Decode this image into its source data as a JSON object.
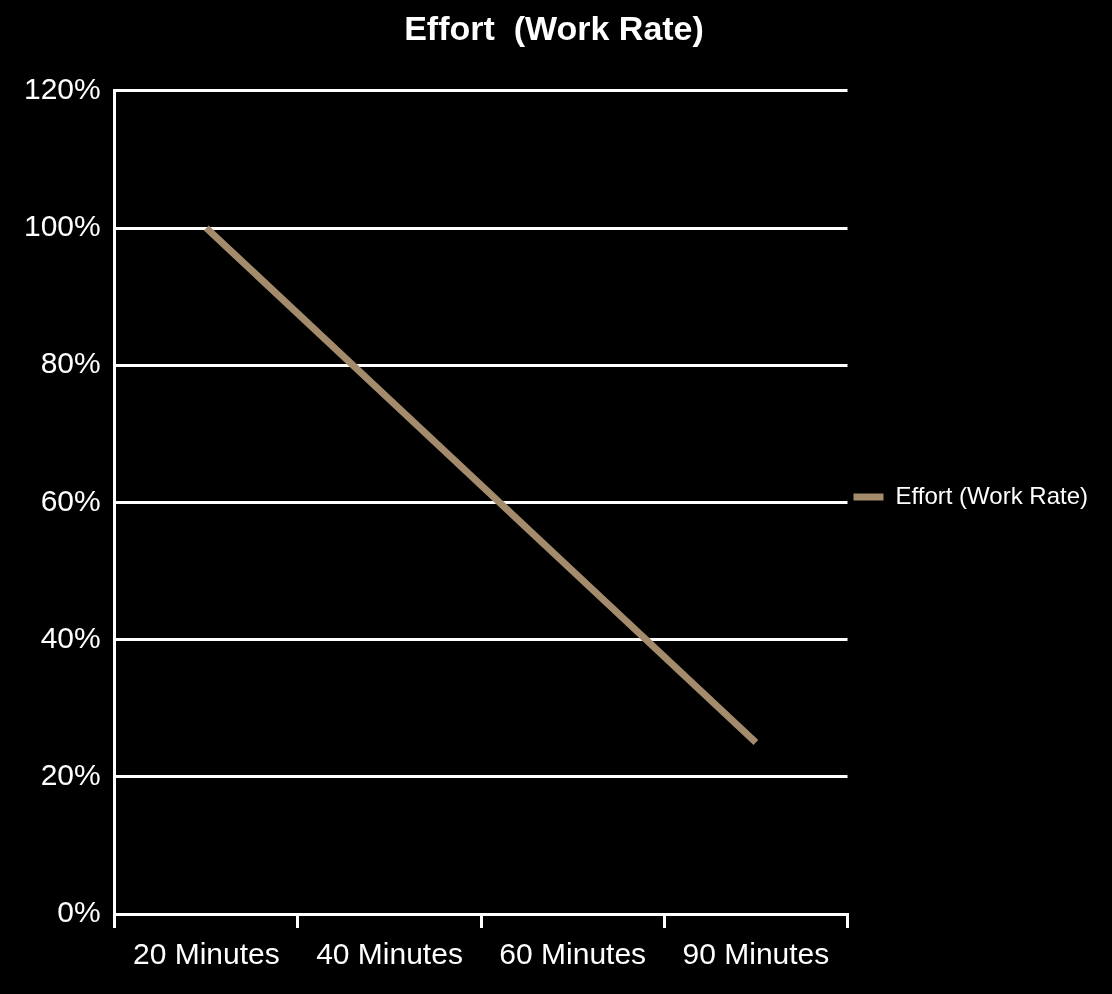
{
  "chart_data": {
    "type": "line",
    "title": "Effort  (Work Rate)",
    "categories": [
      "20 Minutes",
      "40 Minutes",
      "60 Minutes",
      "90 Minutes"
    ],
    "series": [
      {
        "name": "Effort (Work Rate)",
        "color": "#a48b6c",
        "values": [
          100,
          75,
          50,
          25
        ]
      }
    ],
    "ylim": [
      0,
      120
    ],
    "yticks": [
      {
        "value": 0,
        "label": "0%"
      },
      {
        "value": 20,
        "label": "20%"
      },
      {
        "value": 40,
        "label": "40%"
      },
      {
        "value": 60,
        "label": "60%"
      },
      {
        "value": 80,
        "label": "80%"
      },
      {
        "value": 100,
        "label": "100%"
      },
      {
        "value": 120,
        "label": "120%"
      }
    ],
    "grid": "y",
    "legend": "right",
    "marker": "none",
    "line_style": "solid"
  }
}
